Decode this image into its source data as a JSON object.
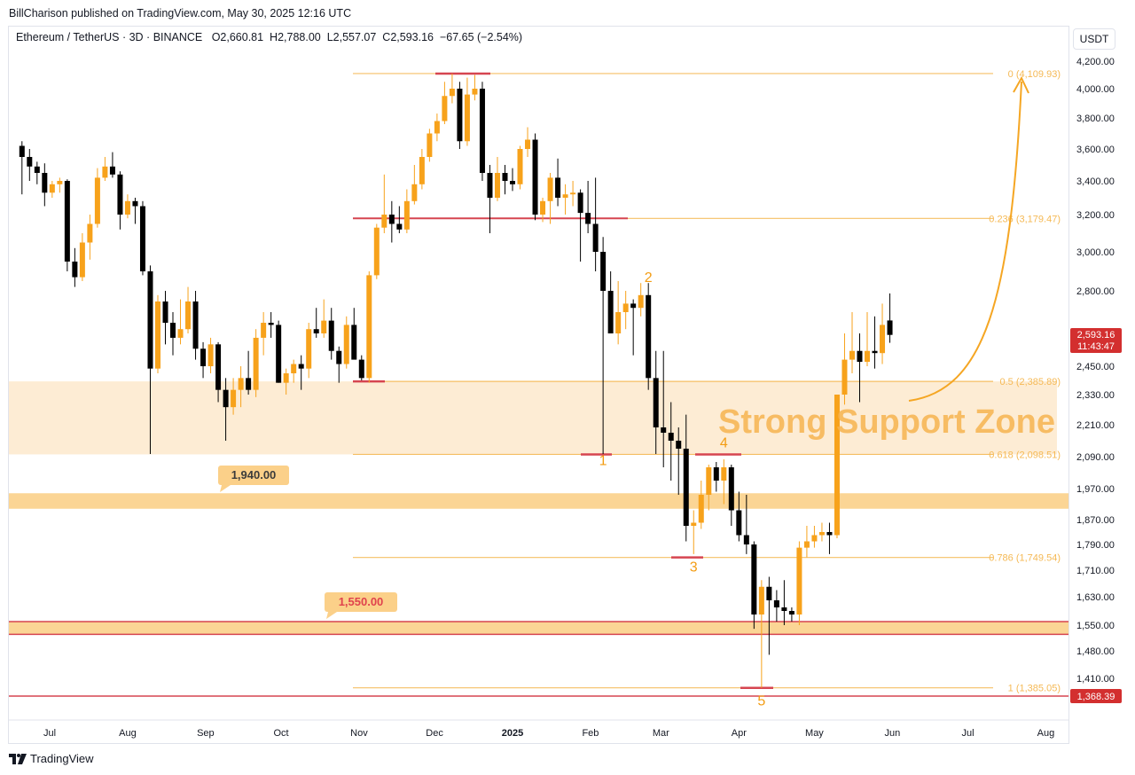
{
  "header": {
    "publisher": "BillCharison published on TradingView.com, May 30, 2025 12:16 UTC"
  },
  "legend": {
    "symbol": "Ethereum / TetherUS · 3D · BINANCE",
    "open_key": "O",
    "open": "2,660.81",
    "high_key": "H",
    "high": "2,788.00",
    "low_key": "L",
    "low": "2,557.07",
    "close_key": "C",
    "close": "2,593.16",
    "change": "−67.65 (−2.54%)"
  },
  "currency": "USDT",
  "footer": {
    "brand": "TradingView",
    "logo": "tradingview-logo-icon"
  },
  "colors": {
    "up": "#f7a21b",
    "down": "#000000",
    "fib": "#f5b955",
    "red_level": "#d64550",
    "zone": "#fde9cc",
    "band": "#fbd089",
    "price_tag": "#d32f2f",
    "annotation": "#f7b450"
  },
  "chart_data": {
    "type": "candlestick",
    "interval": "3D",
    "title": "",
    "xlabel": "",
    "ylabel": "",
    "ylim": [
      1300,
      4300
    ],
    "y_ticks": [
      "4,200.00",
      "4,000.00",
      "3,800.00",
      "3,600.00",
      "3,400.00",
      "3,200.00",
      "3,000.00",
      "2,800.00",
      "2,600.00",
      "2,450.00",
      "2,330.00",
      "2,210.00",
      "2,090.00",
      "1,970.00",
      "1,870.00",
      "1,790.00",
      "1,710.00",
      "1,630.00",
      "1,550.00",
      "1,480.00",
      "1,410.00"
    ],
    "x_ticks": [
      "Jul",
      "Aug",
      "Sep",
      "Oct",
      "Nov",
      "Dec",
      "2025",
      "Feb",
      "Mar",
      "Apr",
      "May",
      "Jun",
      "Jul",
      "Aug"
    ],
    "candles": [
      [
        "2024-06-20",
        3620,
        3650,
        3320,
        3550
      ],
      [
        "2024-06-23",
        3550,
        3600,
        3400,
        3490
      ],
      [
        "2024-06-26",
        3490,
        3520,
        3380,
        3450
      ],
      [
        "2024-06-29",
        3450,
        3510,
        3250,
        3330
      ],
      [
        "2024-07-02",
        3330,
        3400,
        3300,
        3380
      ],
      [
        "2024-07-05",
        3380,
        3420,
        3330,
        3400
      ],
      [
        "2024-07-08",
        3400,
        3410,
        2900,
        2950
      ],
      [
        "2024-07-11",
        2950,
        3020,
        2820,
        2870
      ],
      [
        "2024-07-14",
        2870,
        3100,
        2850,
        3050
      ],
      [
        "2024-07-17",
        3050,
        3200,
        2960,
        3150
      ],
      [
        "2024-07-20",
        3150,
        3480,
        3130,
        3420
      ],
      [
        "2024-07-23",
        3420,
        3550,
        3400,
        3490
      ],
      [
        "2024-07-26",
        3490,
        3580,
        3420,
        3440
      ],
      [
        "2024-07-29",
        3440,
        3460,
        3120,
        3200
      ],
      [
        "2024-08-01",
        3200,
        3320,
        3180,
        3280
      ],
      [
        "2024-08-04",
        3280,
        3300,
        3150,
        3250
      ],
      [
        "2024-08-07",
        3250,
        3280,
        2880,
        2900
      ],
      [
        "2024-08-10",
        2900,
        2930,
        2100,
        2440
      ],
      [
        "2024-08-13",
        2440,
        2780,
        2420,
        2750
      ],
      [
        "2024-08-16",
        2750,
        2800,
        2550,
        2650
      ],
      [
        "2024-08-19",
        2650,
        2700,
        2500,
        2580
      ],
      [
        "2024-08-22",
        2580,
        2760,
        2550,
        2620
      ],
      [
        "2024-08-25",
        2620,
        2820,
        2600,
        2750
      ],
      [
        "2024-08-28",
        2750,
        2800,
        2480,
        2530
      ],
      [
        "2024-08-31",
        2530,
        2560,
        2400,
        2450
      ],
      [
        "2024-09-03",
        2450,
        2580,
        2420,
        2550
      ],
      [
        "2024-09-06",
        2550,
        2560,
        2300,
        2350
      ],
      [
        "2024-09-09",
        2350,
        2400,
        2150,
        2280
      ],
      [
        "2024-09-12",
        2280,
        2400,
        2250,
        2350
      ],
      [
        "2024-09-15",
        2350,
        2450,
        2280,
        2400
      ],
      [
        "2024-09-18",
        2400,
        2520,
        2330,
        2350
      ],
      [
        "2024-09-21",
        2350,
        2620,
        2320,
        2580
      ],
      [
        "2024-09-24",
        2580,
        2700,
        2500,
        2650
      ],
      [
        "2024-09-27",
        2650,
        2700,
        2580,
        2640
      ],
      [
        "2024-09-30",
        2640,
        2660,
        2380,
        2380
      ],
      [
        "2024-10-03",
        2380,
        2440,
        2330,
        2420
      ],
      [
        "2024-10-06",
        2420,
        2480,
        2380,
        2460
      ],
      [
        "2024-10-09",
        2460,
        2500,
        2350,
        2440
      ],
      [
        "2024-10-12",
        2440,
        2650,
        2400,
        2620
      ],
      [
        "2024-10-15",
        2620,
        2720,
        2580,
        2600
      ],
      [
        "2024-10-18",
        2600,
        2760,
        2580,
        2660
      ],
      [
        "2024-10-21",
        2660,
        2720,
        2480,
        2520
      ],
      [
        "2024-10-24",
        2520,
        2540,
        2380,
        2460
      ],
      [
        "2024-10-27",
        2460,
        2680,
        2440,
        2640
      ],
      [
        "2024-10-30",
        2640,
        2720,
        2500,
        2480
      ],
      [
        "2024-11-02",
        2480,
        2500,
        2390,
        2400
      ],
      [
        "2024-11-05",
        2400,
        2900,
        2380,
        2880
      ],
      [
        "2024-11-08",
        2880,
        3150,
        2860,
        3130
      ],
      [
        "2024-11-11",
        3130,
        3440,
        3100,
        3200
      ],
      [
        "2024-11-14",
        3200,
        3280,
        3050,
        3150
      ],
      [
        "2024-11-17",
        3150,
        3250,
        3100,
        3120
      ],
      [
        "2024-11-20",
        3120,
        3350,
        3100,
        3280
      ],
      [
        "2024-11-23",
        3280,
        3500,
        3260,
        3380
      ],
      [
        "2024-11-26",
        3380,
        3600,
        3350,
        3550
      ],
      [
        "2024-11-29",
        3550,
        3730,
        3520,
        3700
      ],
      [
        "2024-12-02",
        3700,
        3830,
        3650,
        3780
      ],
      [
        "2024-12-05",
        3780,
        4050,
        3760,
        3950
      ],
      [
        "2024-12-08",
        3950,
        4109,
        3900,
        4000
      ],
      [
        "2024-12-11",
        4000,
        4050,
        3600,
        3650
      ],
      [
        "2024-12-14",
        3650,
        4080,
        3620,
        3960
      ],
      [
        "2024-12-17",
        3960,
        4100,
        3920,
        4000
      ],
      [
        "2024-12-20",
        4000,
        4050,
        3400,
        3450
      ],
      [
        "2024-12-23",
        3450,
        3500,
        3100,
        3300
      ],
      [
        "2024-12-26",
        3300,
        3550,
        3280,
        3450
      ],
      [
        "2024-12-29",
        3450,
        3500,
        3320,
        3400
      ],
      [
        "2025-01-01",
        3400,
        3480,
        3340,
        3380
      ],
      [
        "2025-01-04",
        3380,
        3620,
        3350,
        3600
      ],
      [
        "2025-01-07",
        3600,
        3740,
        3550,
        3660
      ],
      [
        "2025-01-10",
        3660,
        3700,
        3170,
        3200
      ],
      [
        "2025-01-13",
        3200,
        3300,
        3160,
        3280
      ],
      [
        "2025-01-16",
        3280,
        3450,
        3150,
        3420
      ],
      [
        "2025-01-19",
        3420,
        3540,
        3250,
        3300
      ],
      [
        "2025-01-22",
        3300,
        3380,
        3200,
        3320
      ],
      [
        "2025-01-25",
        3320,
        3400,
        3250,
        3330
      ],
      [
        "2025-01-28",
        3330,
        3350,
        2950,
        3210
      ],
      [
        "2025-01-31",
        3210,
        3400,
        3100,
        3150
      ],
      [
        "2025-02-03",
        3150,
        3420,
        2900,
        3000
      ],
      [
        "2025-02-06",
        3000,
        3080,
        2100,
        2800
      ],
      [
        "2025-02-09",
        2800,
        2900,
        2600,
        2600
      ],
      [
        "2025-02-12",
        2600,
        2850,
        2550,
        2700
      ],
      [
        "2025-02-15",
        2700,
        2800,
        2620,
        2740
      ],
      [
        "2025-02-18",
        2740,
        2760,
        2500,
        2720
      ],
      [
        "2025-02-21",
        2720,
        2840,
        2680,
        2780
      ],
      [
        "2025-02-24",
        2780,
        2840,
        2350,
        2400
      ],
      [
        "2025-02-27",
        2400,
        2520,
        2100,
        2200
      ],
      [
        "2025-03-02",
        2200,
        2520,
        2050,
        2180
      ],
      [
        "2025-03-05",
        2180,
        2300,
        2000,
        2150
      ],
      [
        "2025-03-08",
        2150,
        2200,
        1950,
        2120
      ],
      [
        "2025-03-11",
        2120,
        2250,
        1800,
        1850
      ],
      [
        "2025-03-14",
        1850,
        1900,
        1760,
        1860
      ],
      [
        "2025-03-17",
        1860,
        2000,
        1840,
        1950
      ],
      [
        "2025-03-20",
        1950,
        2060,
        1900,
        2050
      ],
      [
        "2025-03-23",
        2050,
        2070,
        1960,
        2000
      ],
      [
        "2025-03-26",
        2000,
        2080,
        1920,
        2050
      ],
      [
        "2025-03-29",
        2050,
        2060,
        1850,
        1900
      ],
      [
        "2025-04-01",
        1900,
        1960,
        1800,
        1820
      ],
      [
        "2025-04-04",
        1820,
        1950,
        1760,
        1790
      ],
      [
        "2025-04-07",
        1790,
        1800,
        1540,
        1580
      ],
      [
        "2025-04-10",
        1580,
        1680,
        1385,
        1660
      ],
      [
        "2025-04-13",
        1660,
        1690,
        1470,
        1620
      ],
      [
        "2025-04-16",
        1620,
        1650,
        1560,
        1600
      ],
      [
        "2025-04-19",
        1600,
        1680,
        1550,
        1590
      ],
      [
        "2025-04-22",
        1590,
        1600,
        1560,
        1580
      ],
      [
        "2025-04-25",
        1580,
        1800,
        1550,
        1780
      ],
      [
        "2025-04-28",
        1780,
        1850,
        1750,
        1800
      ],
      [
        "2025-05-01",
        1800,
        1850,
        1780,
        1820
      ],
      [
        "2025-05-04",
        1820,
        1860,
        1800,
        1830
      ],
      [
        "2025-05-07",
        1830,
        1860,
        1760,
        1820
      ],
      [
        "2025-05-10",
        1820,
        2330,
        1810,
        2330
      ],
      [
        "2025-05-13",
        2330,
        2600,
        2290,
        2480
      ],
      [
        "2025-05-16",
        2480,
        2700,
        2420,
        2520
      ],
      [
        "2025-05-19",
        2520,
        2600,
        2300,
        2470
      ],
      [
        "2025-05-22",
        2470,
        2700,
        2450,
        2520
      ],
      [
        "2025-05-25",
        2520,
        2680,
        2440,
        2510
      ],
      [
        "2025-05-28",
        2510,
        2740,
        2460,
        2640
      ],
      [
        "2025-05-31",
        2660.81,
        2788.0,
        2557.07,
        2593.16
      ]
    ],
    "fibonacci": [
      {
        "label": "0 (4,109.93)",
        "price": 4109.93
      },
      {
        "label": "0.236 (3,179.47)",
        "price": 3179.47
      },
      {
        "label": "0.5 (2,385.89)",
        "price": 2385.89
      },
      {
        "label": "0.618 (2,098.51)",
        "price": 2098.51
      },
      {
        "label": "0.786 (1,749.54)",
        "price": 1749.54
      },
      {
        "label": "1 (1,385.05)",
        "price": 1385.05
      }
    ],
    "zones": [
      {
        "name": "Strong Support Zone",
        "from": 2098.51,
        "to": 2385.89
      },
      {
        "name": "band-1940",
        "from": 1905,
        "to": 1955
      },
      {
        "name": "band-1550",
        "from": 1525,
        "to": 1560
      }
    ],
    "level_callouts": [
      "1,940.00",
      "1,550.00"
    ],
    "zone_label": "Strong Support Zone",
    "wave_labels": [
      {
        "text": "1",
        "date": "2025-02-06",
        "price": 2098.51
      },
      {
        "text": "2",
        "date": "2025-02-24",
        "price": 2810
      },
      {
        "text": "3",
        "date": "2025-03-14",
        "price": 1749.54
      },
      {
        "text": "4",
        "date": "2025-03-26",
        "price": 2098.51
      },
      {
        "text": "5",
        "date": "2025-04-10",
        "price": 1385.05
      }
    ],
    "last_price": "2,593.16",
    "countdown": "11:43:47",
    "red_line_price": "1,368.39"
  }
}
